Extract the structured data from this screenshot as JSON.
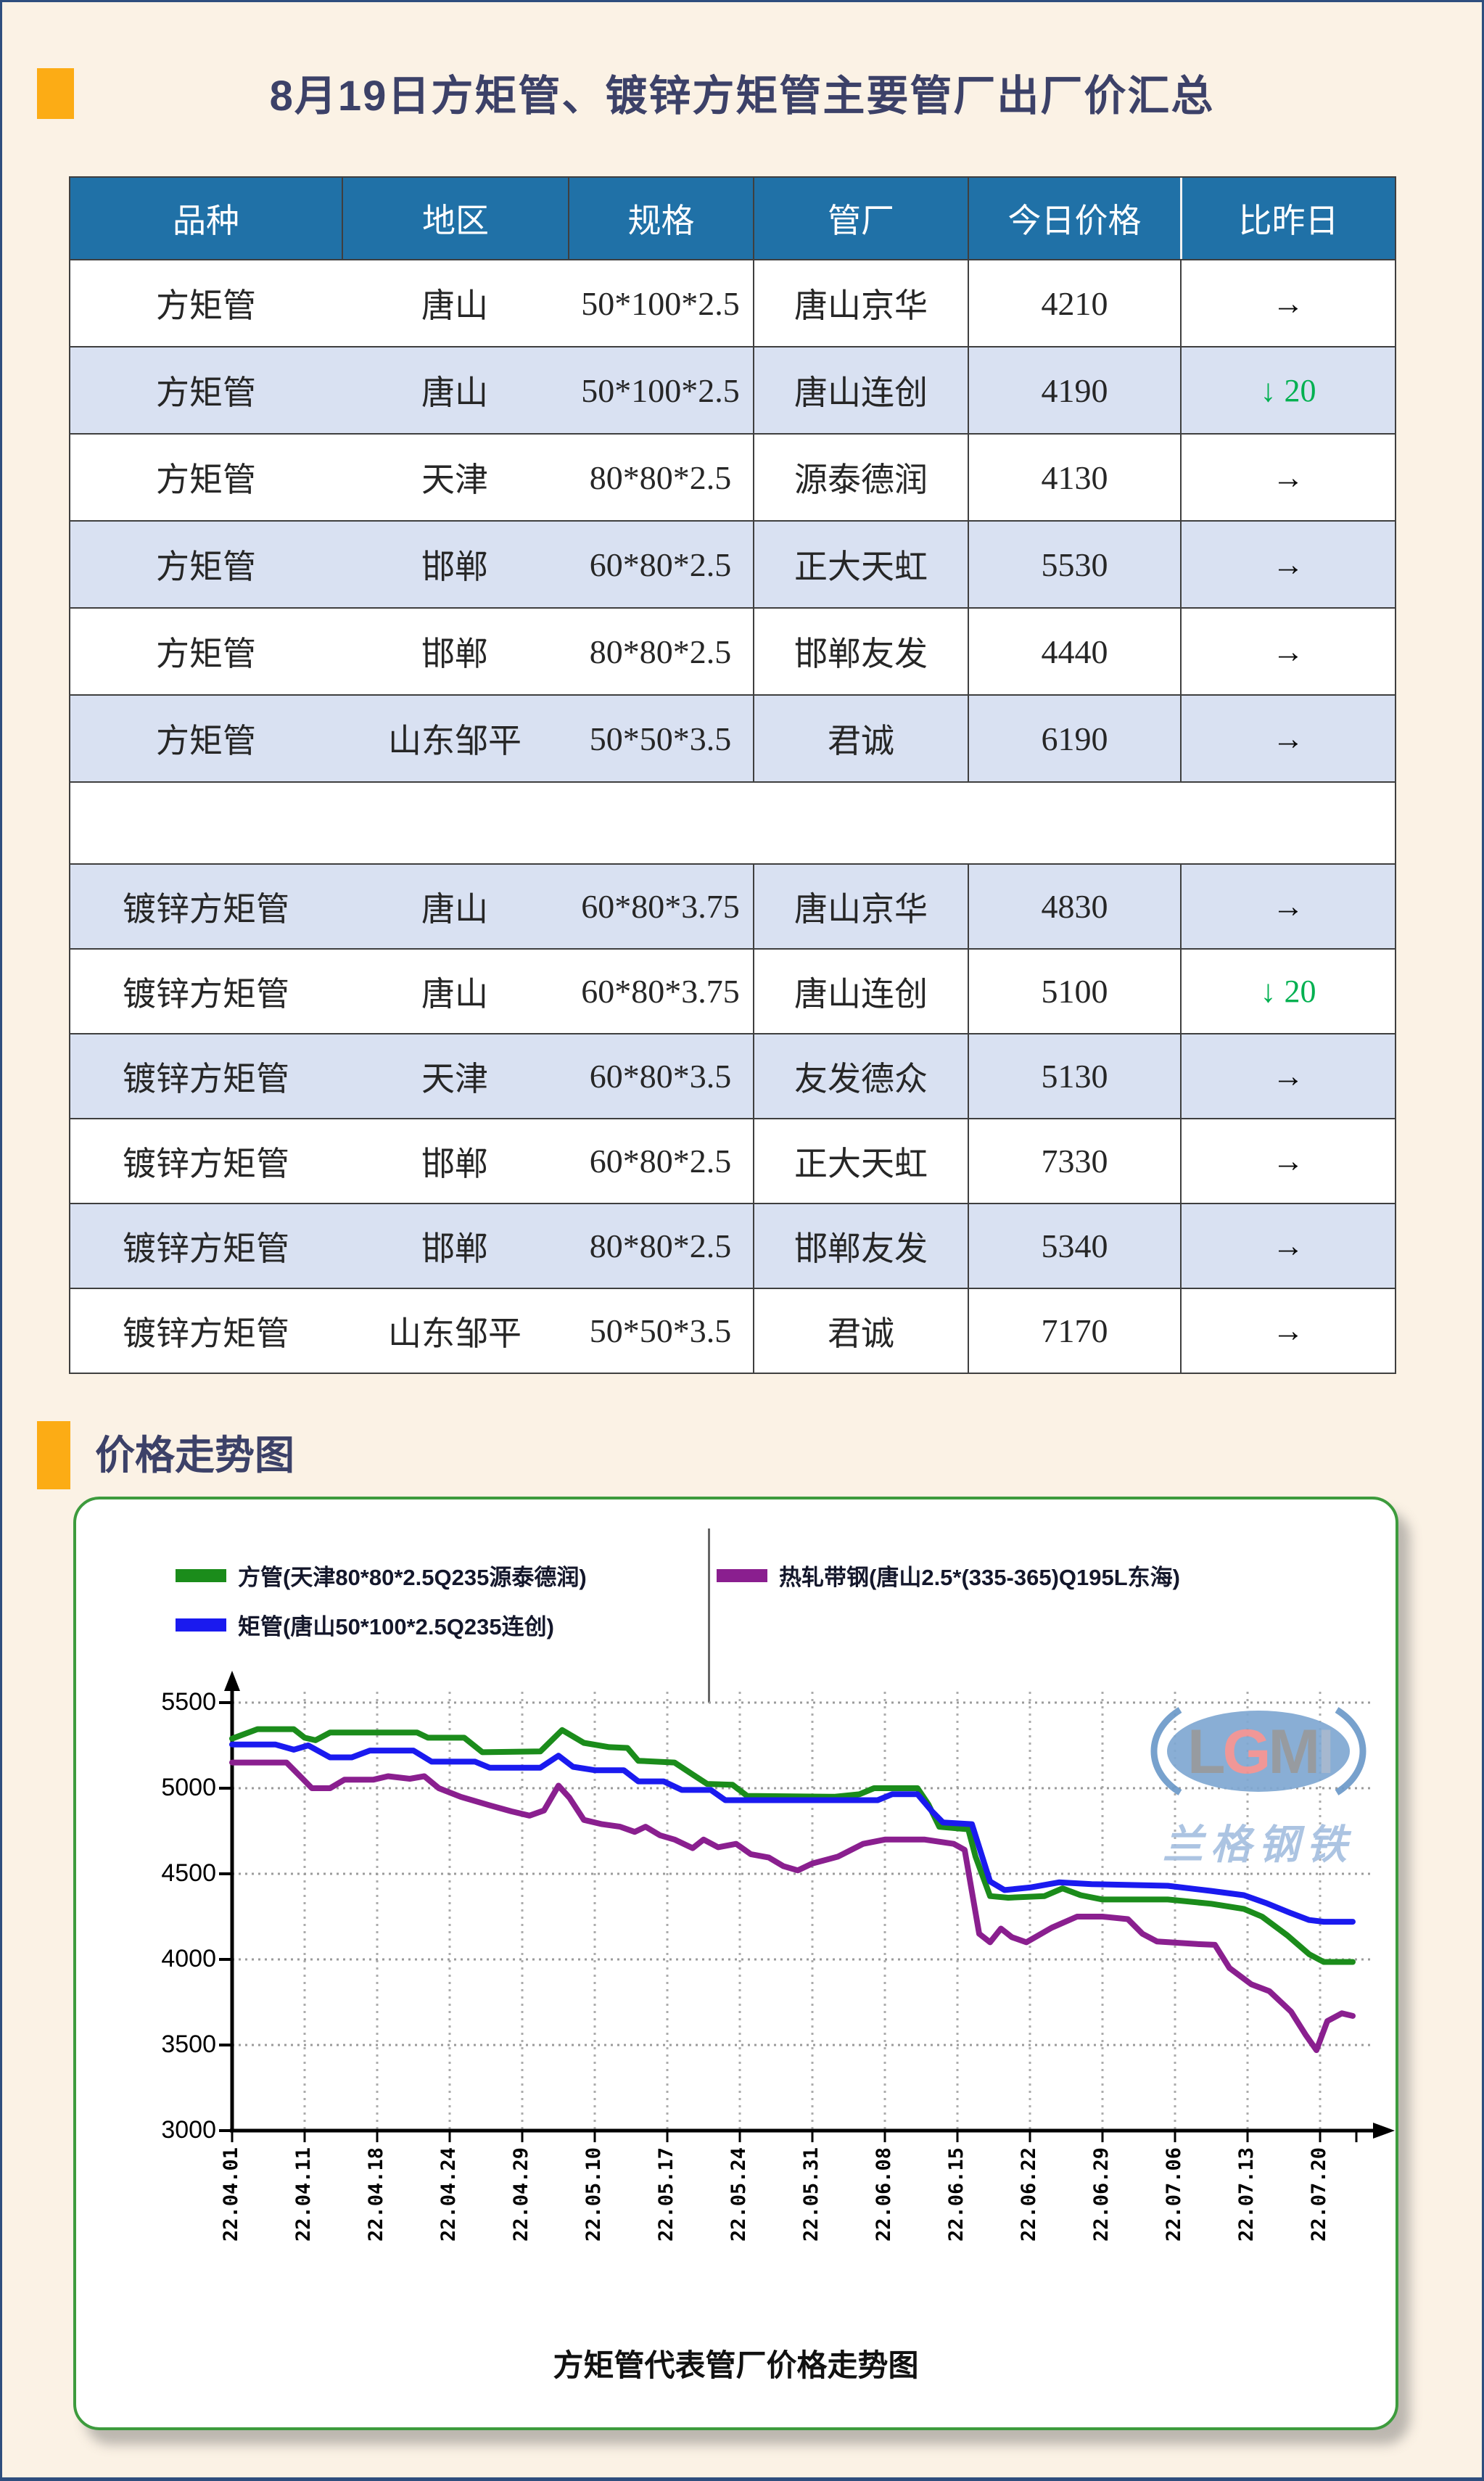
{
  "page": {
    "title": "8月19日方矩管、镀锌方矩管主要管厂出厂价汇总",
    "section2_title": "价格走势图",
    "colors": {
      "background": "#FBF2E5",
      "page_border": "#2E4E7E",
      "accent_orange": "#FCAC15",
      "title_navy": "#3C4168",
      "table_header_bg": "#2071A7",
      "table_alt_row_bg": "#D9E1F2",
      "down_green": "#00B050",
      "panel_border_green": "#3D9B3D"
    }
  },
  "table": {
    "headers": [
      "品种",
      "地区",
      "规格",
      "管厂",
      "今日价格",
      "比昨日"
    ],
    "rows": [
      {
        "variety": "方矩管",
        "region": "唐山",
        "spec": "50*100*2.5",
        "factory": "唐山京华",
        "price": "4210",
        "change": "→",
        "change_dir": "flat",
        "alt": false
      },
      {
        "variety": "方矩管",
        "region": "唐山",
        "spec": "50*100*2.5",
        "factory": "唐山连创",
        "price": "4190",
        "change": "↓ 20",
        "change_dir": "down",
        "alt": true
      },
      {
        "variety": "方矩管",
        "region": "天津",
        "spec": "80*80*2.5",
        "factory": "源泰德润",
        "price": "4130",
        "change": "→",
        "change_dir": "flat",
        "alt": false
      },
      {
        "variety": "方矩管",
        "region": "邯郸",
        "spec": "60*80*2.5",
        "factory": "正大天虹",
        "price": "5530",
        "change": "→",
        "change_dir": "flat",
        "alt": true
      },
      {
        "variety": "方矩管",
        "region": "邯郸",
        "spec": "80*80*2.5",
        "factory": "邯郸友发",
        "price": "4440",
        "change": "→",
        "change_dir": "flat",
        "alt": false
      },
      {
        "variety": "方矩管",
        "region": "山东邹平",
        "spec": "50*50*3.5",
        "factory": "君诚",
        "price": "6190",
        "change": "→",
        "change_dir": "flat",
        "alt": true
      },
      {
        "separator": true
      },
      {
        "variety": "镀锌方矩管",
        "region": "唐山",
        "spec": "60*80*3.75",
        "factory": "唐山京华",
        "price": "4830",
        "change": "→",
        "change_dir": "flat",
        "alt": true
      },
      {
        "variety": "镀锌方矩管",
        "region": "唐山",
        "spec": "60*80*3.75",
        "factory": "唐山连创",
        "price": "5100",
        "change": "↓ 20",
        "change_dir": "down",
        "alt": false
      },
      {
        "variety": "镀锌方矩管",
        "region": "天津",
        "spec": "60*80*3.5",
        "factory": "友发德众",
        "price": "5130",
        "change": "→",
        "change_dir": "flat",
        "alt": true
      },
      {
        "variety": "镀锌方矩管",
        "region": "邯郸",
        "spec": "60*80*2.5",
        "factory": "正大天虹",
        "price": "7330",
        "change": "→",
        "change_dir": "flat",
        "alt": false
      },
      {
        "variety": "镀锌方矩管",
        "region": "邯郸",
        "spec": "80*80*2.5",
        "factory": "邯郸友发",
        "price": "5340",
        "change": "→",
        "change_dir": "flat",
        "alt": true
      },
      {
        "variety": "镀锌方矩管",
        "region": "山东邹平",
        "spec": "50*50*3.5",
        "factory": "君诚",
        "price": "7170",
        "change": "→",
        "change_dir": "flat",
        "alt": false
      }
    ]
  },
  "chart_data": {
    "type": "line",
    "title": "方矩管代表管厂价格走势图",
    "ylim": [
      3000,
      5500
    ],
    "y_ticks": [
      3000,
      3500,
      4000,
      4500,
      5000,
      5500
    ],
    "x_labels": [
      "22.04.01",
      "22.04.11",
      "22.04.18",
      "22.04.24",
      "22.04.29",
      "22.05.10",
      "22.05.17",
      "22.05.24",
      "22.05.31",
      "22.06.08",
      "22.06.15",
      "22.06.22",
      "22.06.29",
      "22.07.06",
      "22.07.13",
      "22.07.20"
    ],
    "grid": true,
    "legend_position": "top",
    "watermark": {
      "logo": "LGMI",
      "text": "兰格钢铁"
    },
    "series": [
      {
        "name": "方管(天津80*80*2.5Q235源泰德润)",
        "color": "#1B8C1B",
        "points": [
          [
            0,
            5290
          ],
          [
            0.35,
            5345
          ],
          [
            0.85,
            5345
          ],
          [
            1.0,
            5295
          ],
          [
            1.15,
            5280
          ],
          [
            1.35,
            5325
          ],
          [
            2.55,
            5325
          ],
          [
            2.7,
            5295
          ],
          [
            3.2,
            5295
          ],
          [
            3.45,
            5210
          ],
          [
            4.25,
            5215
          ],
          [
            4.55,
            5340
          ],
          [
            4.85,
            5265
          ],
          [
            5.2,
            5240
          ],
          [
            5.45,
            5235
          ],
          [
            5.6,
            5160
          ],
          [
            6.1,
            5150
          ],
          [
            6.35,
            5080
          ],
          [
            6.55,
            5025
          ],
          [
            6.9,
            5020
          ],
          [
            7.1,
            4955
          ],
          [
            8.3,
            4950
          ],
          [
            8.65,
            4965
          ],
          [
            8.85,
            5000
          ],
          [
            9.45,
            5000
          ],
          [
            9.6,
            4905
          ],
          [
            9.75,
            4775
          ],
          [
            10.15,
            4760
          ],
          [
            10.25,
            4600
          ],
          [
            10.45,
            4370
          ],
          [
            10.7,
            4360
          ],
          [
            11.2,
            4370
          ],
          [
            11.45,
            4415
          ],
          [
            11.7,
            4375
          ],
          [
            12.0,
            4350
          ],
          [
            12.9,
            4350
          ],
          [
            13.5,
            4325
          ],
          [
            13.95,
            4295
          ],
          [
            14.2,
            4250
          ],
          [
            14.55,
            4140
          ],
          [
            14.85,
            4030
          ],
          [
            15.05,
            3985
          ],
          [
            15.45,
            3985
          ]
        ]
      },
      {
        "name": "矩管(唐山50*100*2.5Q235连创)",
        "color": "#1A1AEF",
        "points": [
          [
            0,
            5255
          ],
          [
            0.6,
            5255
          ],
          [
            0.85,
            5225
          ],
          [
            1.05,
            5250
          ],
          [
            1.35,
            5180
          ],
          [
            1.65,
            5180
          ],
          [
            1.9,
            5220
          ],
          [
            2.5,
            5220
          ],
          [
            2.75,
            5155
          ],
          [
            3.35,
            5155
          ],
          [
            3.55,
            5120
          ],
          [
            4.25,
            5120
          ],
          [
            4.5,
            5190
          ],
          [
            4.7,
            5125
          ],
          [
            5.0,
            5105
          ],
          [
            5.4,
            5105
          ],
          [
            5.6,
            5040
          ],
          [
            5.95,
            5040
          ],
          [
            6.2,
            4990
          ],
          [
            6.6,
            4990
          ],
          [
            6.8,
            4930
          ],
          [
            8.9,
            4930
          ],
          [
            9.1,
            4965
          ],
          [
            9.45,
            4965
          ],
          [
            9.65,
            4865
          ],
          [
            9.8,
            4800
          ],
          [
            10.2,
            4790
          ],
          [
            10.45,
            4455
          ],
          [
            10.65,
            4405
          ],
          [
            11.0,
            4420
          ],
          [
            11.4,
            4450
          ],
          [
            11.85,
            4440
          ],
          [
            12.9,
            4430
          ],
          [
            13.5,
            4400
          ],
          [
            13.95,
            4375
          ],
          [
            14.25,
            4330
          ],
          [
            14.6,
            4270
          ],
          [
            14.85,
            4230
          ],
          [
            15.05,
            4220
          ],
          [
            15.45,
            4220
          ]
        ]
      },
      {
        "name": "热轧带钢(唐山2.5*(335-365)Q195L东海)",
        "color": "#8A1F8F",
        "points": [
          [
            0,
            5150
          ],
          [
            0.75,
            5150
          ],
          [
            0.95,
            5065
          ],
          [
            1.1,
            5000
          ],
          [
            1.35,
            5000
          ],
          [
            1.55,
            5050
          ],
          [
            1.95,
            5050
          ],
          [
            2.15,
            5070
          ],
          [
            2.45,
            5055
          ],
          [
            2.65,
            5070
          ],
          [
            2.85,
            5000
          ],
          [
            3.15,
            4950
          ],
          [
            3.55,
            4900
          ],
          [
            3.85,
            4865
          ],
          [
            4.1,
            4840
          ],
          [
            4.3,
            4870
          ],
          [
            4.5,
            5015
          ],
          [
            4.65,
            4945
          ],
          [
            4.85,
            4815
          ],
          [
            5.1,
            4790
          ],
          [
            5.35,
            4775
          ],
          [
            5.55,
            4745
          ],
          [
            5.7,
            4775
          ],
          [
            5.9,
            4725
          ],
          [
            6.1,
            4700
          ],
          [
            6.35,
            4650
          ],
          [
            6.5,
            4700
          ],
          [
            6.7,
            4655
          ],
          [
            6.95,
            4675
          ],
          [
            7.15,
            4615
          ],
          [
            7.4,
            4595
          ],
          [
            7.6,
            4545
          ],
          [
            7.8,
            4520
          ],
          [
            8.0,
            4560
          ],
          [
            8.35,
            4600
          ],
          [
            8.7,
            4675
          ],
          [
            9.0,
            4700
          ],
          [
            9.55,
            4700
          ],
          [
            9.95,
            4675
          ],
          [
            10.1,
            4640
          ],
          [
            10.3,
            4150
          ],
          [
            10.45,
            4100
          ],
          [
            10.6,
            4180
          ],
          [
            10.75,
            4130
          ],
          [
            10.95,
            4100
          ],
          [
            11.3,
            4185
          ],
          [
            11.65,
            4250
          ],
          [
            12.0,
            4250
          ],
          [
            12.35,
            4235
          ],
          [
            12.55,
            4150
          ],
          [
            12.75,
            4105
          ],
          [
            13.3,
            4090
          ],
          [
            13.55,
            4085
          ],
          [
            13.75,
            3950
          ],
          [
            14.05,
            3855
          ],
          [
            14.3,
            3815
          ],
          [
            14.6,
            3695
          ],
          [
            14.8,
            3560
          ],
          [
            14.95,
            3470
          ],
          [
            15.1,
            3640
          ],
          [
            15.3,
            3685
          ],
          [
            15.45,
            3670
          ]
        ]
      }
    ]
  }
}
